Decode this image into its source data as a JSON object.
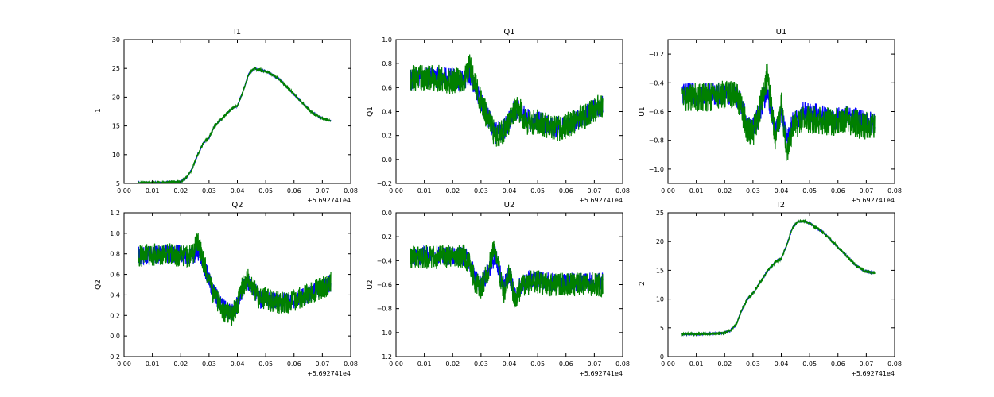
{
  "figure": {
    "background": "#ffffff",
    "series_colors": [
      "#0000ff",
      "#008000"
    ]
  },
  "chart_data": [
    {
      "type": "line",
      "title": "I1",
      "xlabel": "",
      "ylabel": "I1",
      "x_offset_label": "+5.692741e4",
      "xlim": [
        0.0,
        0.08
      ],
      "ylim": [
        5,
        30
      ],
      "xticks": [
        "0.00",
        "0.01",
        "0.02",
        "0.03",
        "0.04",
        "0.05",
        "0.06",
        "0.07",
        "0.08"
      ],
      "yticks": [
        "5",
        "10",
        "15",
        "20",
        "25",
        "30"
      ],
      "grid": false,
      "x": [
        0.005,
        0.01,
        0.015,
        0.02,
        0.022,
        0.024,
        0.026,
        0.028,
        0.03,
        0.032,
        0.035,
        0.038,
        0.04,
        0.042,
        0.044,
        0.046,
        0.048,
        0.05,
        0.052,
        0.055,
        0.058,
        0.06,
        0.063,
        0.066,
        0.069,
        0.072,
        0.073
      ],
      "series": [
        {
          "color": "#0000ff",
          "noise": 0.15,
          "values": [
            5.1,
            5.1,
            5.2,
            5.3,
            6.0,
            7.5,
            10.0,
            12.0,
            13.0,
            15.0,
            16.5,
            18.0,
            18.5,
            21.0,
            24.0,
            25.0,
            24.7,
            24.5,
            24.0,
            23.0,
            21.5,
            20.5,
            19.0,
            17.5,
            16.5,
            16.0,
            15.9
          ]
        },
        {
          "color": "#008000",
          "noise": 0.25,
          "values": [
            5.1,
            5.1,
            5.2,
            5.3,
            6.0,
            7.5,
            10.0,
            12.0,
            13.0,
            15.0,
            16.5,
            18.0,
            18.5,
            21.0,
            24.0,
            25.0,
            24.7,
            24.5,
            24.0,
            23.0,
            21.5,
            20.5,
            19.0,
            17.5,
            16.5,
            16.0,
            15.9
          ]
        }
      ]
    },
    {
      "type": "line",
      "title": "Q1",
      "xlabel": "",
      "ylabel": "Q1",
      "x_offset_label": "+5.692741e4",
      "xlim": [
        0.0,
        0.08
      ],
      "ylim": [
        -0.2,
        1.0
      ],
      "xticks": [
        "0.00",
        "0.01",
        "0.02",
        "0.03",
        "0.04",
        "0.05",
        "0.06",
        "0.07",
        "0.08"
      ],
      "yticks": [
        "−0.2",
        "0.0",
        "0.2",
        "0.4",
        "0.6",
        "0.8",
        "1.0"
      ],
      "grid": false,
      "x": [
        0.005,
        0.01,
        0.015,
        0.02,
        0.022,
        0.024,
        0.026,
        0.028,
        0.03,
        0.032,
        0.035,
        0.038,
        0.04,
        0.042,
        0.044,
        0.046,
        0.048,
        0.05,
        0.052,
        0.055,
        0.058,
        0.06,
        0.063,
        0.066,
        0.069,
        0.072,
        0.073
      ],
      "series": [
        {
          "color": "#0000ff",
          "noise": 0.09,
          "values": [
            0.67,
            0.68,
            0.68,
            0.68,
            0.66,
            0.66,
            0.72,
            0.6,
            0.48,
            0.38,
            0.22,
            0.25,
            0.32,
            0.42,
            0.4,
            0.35,
            0.3,
            0.32,
            0.3,
            0.28,
            0.27,
            0.28,
            0.32,
            0.35,
            0.4,
            0.44,
            0.45
          ]
        },
        {
          "color": "#008000",
          "noise": 0.11,
          "values": [
            0.68,
            0.68,
            0.68,
            0.65,
            0.66,
            0.66,
            0.78,
            0.62,
            0.48,
            0.36,
            0.2,
            0.24,
            0.3,
            0.42,
            0.4,
            0.32,
            0.3,
            0.32,
            0.29,
            0.27,
            0.26,
            0.28,
            0.32,
            0.35,
            0.4,
            0.44,
            0.46
          ]
        }
      ]
    },
    {
      "type": "line",
      "title": "U1",
      "xlabel": "",
      "ylabel": "U1",
      "x_offset_label": "+5.692741e4",
      "xlim": [
        0.0,
        0.08
      ],
      "ylim": [
        -1.1,
        -0.1
      ],
      "xticks": [
        "0.00",
        "0.01",
        "0.02",
        "0.03",
        "0.04",
        "0.05",
        "0.06",
        "0.07",
        "0.08"
      ],
      "yticks": [
        "−1.0",
        "−0.8",
        "−0.6",
        "−0.4",
        "−0.2"
      ],
      "grid": false,
      "x": [
        0.005,
        0.01,
        0.015,
        0.02,
        0.022,
        0.024,
        0.026,
        0.028,
        0.03,
        0.032,
        0.035,
        0.038,
        0.04,
        0.042,
        0.044,
        0.046,
        0.048,
        0.05,
        0.052,
        0.055,
        0.058,
        0.06,
        0.063,
        0.066,
        0.069,
        0.072,
        0.073
      ],
      "series": [
        {
          "color": "#0000ff",
          "noise": 0.08,
          "values": [
            -0.48,
            -0.48,
            -0.48,
            -0.48,
            -0.48,
            -0.48,
            -0.55,
            -0.7,
            -0.72,
            -0.62,
            -0.45,
            -0.75,
            -0.6,
            -0.82,
            -0.68,
            -0.65,
            -0.6,
            -0.62,
            -0.62,
            -0.64,
            -0.66,
            -0.65,
            -0.64,
            -0.65,
            -0.67,
            -0.68,
            -0.68
          ]
        },
        {
          "color": "#008000",
          "noise": 0.1,
          "values": [
            -0.5,
            -0.5,
            -0.5,
            -0.48,
            -0.48,
            -0.48,
            -0.58,
            -0.72,
            -0.75,
            -0.62,
            -0.35,
            -0.8,
            -0.55,
            -0.88,
            -0.7,
            -0.68,
            -0.65,
            -0.66,
            -0.66,
            -0.66,
            -0.68,
            -0.66,
            -0.66,
            -0.68,
            -0.7,
            -0.7,
            -0.7
          ]
        }
      ]
    },
    {
      "type": "line",
      "title": "Q2",
      "xlabel": "",
      "ylabel": "Q2",
      "x_offset_label": "+5.692741e4",
      "xlim": [
        0.0,
        0.08
      ],
      "ylim": [
        -0.2,
        1.2
      ],
      "xticks": [
        "0.00",
        "0.01",
        "0.02",
        "0.03",
        "0.04",
        "0.05",
        "0.06",
        "0.07",
        "0.08"
      ],
      "yticks": [
        "−0.2",
        "0.0",
        "0.2",
        "0.4",
        "0.6",
        "0.8",
        "1.0",
        "1.2"
      ],
      "grid": false,
      "x": [
        0.005,
        0.01,
        0.015,
        0.02,
        0.022,
        0.024,
        0.026,
        0.028,
        0.03,
        0.032,
        0.035,
        0.038,
        0.04,
        0.042,
        0.044,
        0.046,
        0.048,
        0.05,
        0.052,
        0.055,
        0.058,
        0.06,
        0.063,
        0.066,
        0.069,
        0.072,
        0.073
      ],
      "series": [
        {
          "color": "#0000ff",
          "noise": 0.09,
          "values": [
            0.78,
            0.79,
            0.8,
            0.8,
            0.78,
            0.78,
            0.82,
            0.7,
            0.55,
            0.4,
            0.28,
            0.22,
            0.3,
            0.48,
            0.52,
            0.45,
            0.35,
            0.38,
            0.35,
            0.32,
            0.33,
            0.35,
            0.38,
            0.42,
            0.46,
            0.5,
            0.52
          ]
        },
        {
          "color": "#008000",
          "noise": 0.11,
          "values": [
            0.78,
            0.79,
            0.8,
            0.78,
            0.78,
            0.78,
            0.92,
            0.72,
            0.55,
            0.38,
            0.25,
            0.2,
            0.3,
            0.5,
            0.55,
            0.45,
            0.35,
            0.38,
            0.34,
            0.32,
            0.32,
            0.35,
            0.38,
            0.42,
            0.46,
            0.5,
            0.52
          ]
        }
      ]
    },
    {
      "type": "line",
      "title": "U2",
      "xlabel": "",
      "ylabel": "U2",
      "x_offset_label": "+5.692741e4",
      "xlim": [
        0.0,
        0.08
      ],
      "ylim": [
        -1.2,
        0.0
      ],
      "xticks": [
        "0.00",
        "0.01",
        "0.02",
        "0.03",
        "0.04",
        "0.05",
        "0.06",
        "0.07",
        "0.08"
      ],
      "yticks": [
        "−1.2",
        "−1.0",
        "−0.8",
        "−0.6",
        "−0.4",
        "−0.2",
        "0.0"
      ],
      "grid": false,
      "x": [
        0.005,
        0.01,
        0.015,
        0.02,
        0.022,
        0.024,
        0.026,
        0.028,
        0.03,
        0.032,
        0.035,
        0.038,
        0.04,
        0.042,
        0.044,
        0.046,
        0.048,
        0.05,
        0.052,
        0.055,
        0.058,
        0.06,
        0.063,
        0.066,
        0.069,
        0.072,
        0.073
      ],
      "series": [
        {
          "color": "#0000ff",
          "noise": 0.08,
          "values": [
            -0.36,
            -0.36,
            -0.36,
            -0.36,
            -0.36,
            -0.36,
            -0.4,
            -0.55,
            -0.6,
            -0.52,
            -0.35,
            -0.62,
            -0.5,
            -0.7,
            -0.6,
            -0.58,
            -0.55,
            -0.56,
            -0.57,
            -0.58,
            -0.58,
            -0.58,
            -0.58,
            -0.58,
            -0.58,
            -0.58,
            -0.58
          ]
        },
        {
          "color": "#008000",
          "noise": 0.1,
          "values": [
            -0.37,
            -0.37,
            -0.37,
            -0.36,
            -0.36,
            -0.36,
            -0.42,
            -0.58,
            -0.62,
            -0.52,
            -0.28,
            -0.68,
            -0.5,
            -0.75,
            -0.62,
            -0.6,
            -0.57,
            -0.58,
            -0.59,
            -0.6,
            -0.6,
            -0.6,
            -0.6,
            -0.6,
            -0.6,
            -0.6,
            -0.6
          ]
        }
      ]
    },
    {
      "type": "line",
      "title": "I2",
      "xlabel": "",
      "ylabel": "I2",
      "x_offset_label": "+5.692741e4",
      "xlim": [
        0.0,
        0.08
      ],
      "ylim": [
        0,
        25
      ],
      "xticks": [
        "0.00",
        "0.01",
        "0.02",
        "0.03",
        "0.04",
        "0.05",
        "0.06",
        "0.07",
        "0.08"
      ],
      "yticks": [
        "0",
        "5",
        "10",
        "15",
        "20",
        "25"
      ],
      "grid": false,
      "x": [
        0.005,
        0.01,
        0.015,
        0.02,
        0.022,
        0.024,
        0.026,
        0.028,
        0.03,
        0.032,
        0.035,
        0.038,
        0.04,
        0.042,
        0.044,
        0.046,
        0.048,
        0.05,
        0.052,
        0.055,
        0.058,
        0.06,
        0.063,
        0.066,
        0.069,
        0.072,
        0.073
      ],
      "series": [
        {
          "color": "#0000ff",
          "noise": 0.15,
          "values": [
            3.9,
            3.9,
            4.0,
            4.1,
            4.5,
            5.5,
            8.0,
            10.0,
            11.0,
            12.5,
            14.8,
            16.5,
            17.0,
            19.5,
            22.5,
            23.5,
            23.5,
            23.2,
            22.5,
            21.5,
            20.0,
            19.0,
            17.5,
            16.0,
            15.0,
            14.6,
            14.5
          ]
        },
        {
          "color": "#008000",
          "noise": 0.25,
          "values": [
            3.9,
            3.9,
            4.0,
            4.1,
            4.5,
            5.5,
            8.0,
            10.0,
            11.0,
            12.5,
            14.8,
            16.5,
            17.0,
            19.5,
            22.5,
            23.5,
            23.5,
            23.2,
            22.5,
            21.5,
            20.0,
            19.0,
            17.5,
            16.0,
            15.0,
            14.6,
            14.5
          ]
        }
      ]
    }
  ]
}
